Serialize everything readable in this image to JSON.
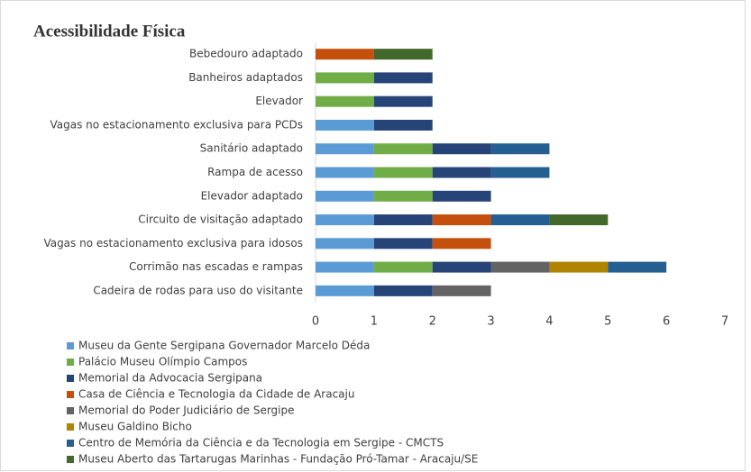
{
  "chart_data": {
    "type": "stacked_barh",
    "title": "Acessibilidade Física",
    "categories": [
      "Bebedouro adaptado",
      "Banheiros adaptados",
      "Elevador",
      "Vagas no estacionamento exclusiva para PCDs",
      "Sanitário adaptado",
      "Rampa de acesso",
      "Elevador adaptado",
      "Circuito de visitação adaptado",
      "Vagas no estacionamento exclusiva para idosos",
      "Corrimão nas escadas e rampas",
      "Cadeira de rodas para uso do visitante"
    ],
    "series": [
      {
        "name": "Museu da Gente Sergipana Governador Marcelo Déda",
        "color": "#5b9bd5",
        "values": [
          0,
          0,
          0,
          1,
          1,
          1,
          1,
          1,
          1,
          1,
          1
        ]
      },
      {
        "name": "Palácio Museu Olímpio Campos",
        "color": "#70ad47",
        "values": [
          0,
          1,
          1,
          0,
          1,
          1,
          1,
          0,
          0,
          1,
          0
        ]
      },
      {
        "name": "Memorial da Advocacia Sergipana",
        "color": "#264478",
        "values": [
          0,
          1,
          1,
          1,
          1,
          1,
          1,
          1,
          1,
          1,
          1
        ]
      },
      {
        "name": "Casa de Ciência e Tecnologia da Cidade de Aracaju",
        "color": "#c5500e",
        "values": [
          1,
          0,
          0,
          0,
          0,
          0,
          0,
          1,
          1,
          0,
          0
        ]
      },
      {
        "name": "Memorial do Poder Judiciário de Sergipe",
        "color": "#636363",
        "values": [
          0,
          0,
          0,
          0,
          0,
          0,
          0,
          0,
          0,
          1,
          1
        ]
      },
      {
        "name": "Museu Galdino Bicho",
        "color": "#b08400",
        "values": [
          0,
          0,
          0,
          0,
          0,
          0,
          0,
          0,
          0,
          1,
          0
        ]
      },
      {
        "name": "Centro de Memória da Ciência e da Tecnologia em Sergipe - CMCTS",
        "color": "#255e91",
        "values": [
          0,
          0,
          0,
          0,
          1,
          1,
          0,
          1,
          0,
          1,
          0
        ]
      },
      {
        "name": "Museu Aberto das Tartarugas Marinhas - Fundação Pró-Tamar - Aracaju/SE",
        "color": "#43682b",
        "values": [
          1,
          0,
          0,
          0,
          0,
          0,
          0,
          1,
          0,
          0,
          0
        ]
      }
    ],
    "xlim": [
      0,
      7
    ],
    "xticks": [
      0,
      1,
      2,
      3,
      4,
      5,
      6,
      7
    ]
  }
}
